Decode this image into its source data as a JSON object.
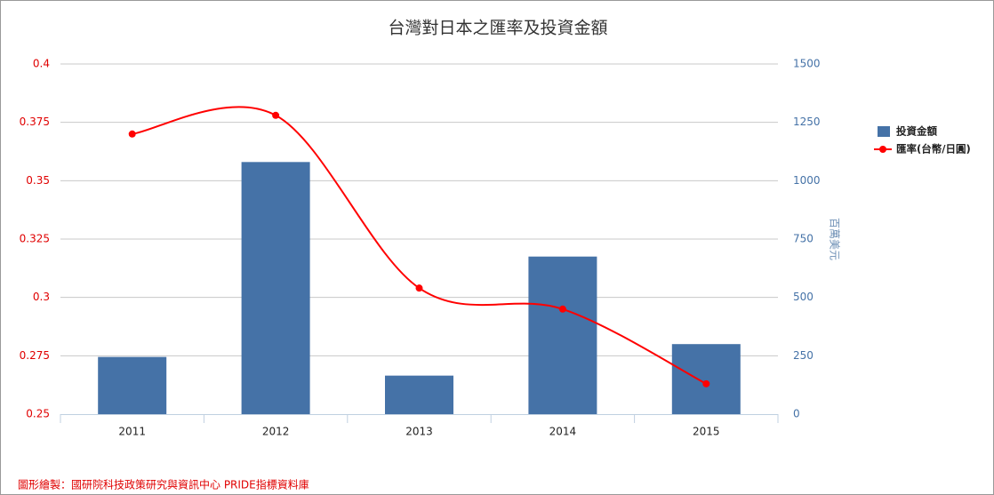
{
  "chart_data": {
    "type": "bar_line",
    "title": "台灣對日本之匯率及投資金額",
    "categories": [
      "2011",
      "2012",
      "2013",
      "2014",
      "2015"
    ],
    "series": [
      {
        "name": "投資金額",
        "type": "bar",
        "axis": "y2",
        "color": "#4572a7",
        "values": [
          245,
          1080,
          165,
          675,
          300
        ]
      },
      {
        "name": "匯率(台幣/日圓)",
        "type": "line",
        "axis": "y",
        "color": "#ff0000",
        "values": [
          0.37,
          0.378,
          0.304,
          0.295,
          0.263
        ]
      }
    ],
    "ylim": [
      0.25,
      0.4
    ],
    "yticks": [
      0.25,
      0.275,
      0.3,
      0.325,
      0.35,
      0.375,
      0.4
    ],
    "y2lim": [
      0,
      1500
    ],
    "y2ticks": [
      0,
      250,
      500,
      750,
      1000,
      1250,
      1500
    ],
    "y2label": "百萬美元",
    "grid": true,
    "legend": "right",
    "note": "圖形繪製：國研院科技政策研究與資訊中心 PRIDE指標資料庫"
  }
}
